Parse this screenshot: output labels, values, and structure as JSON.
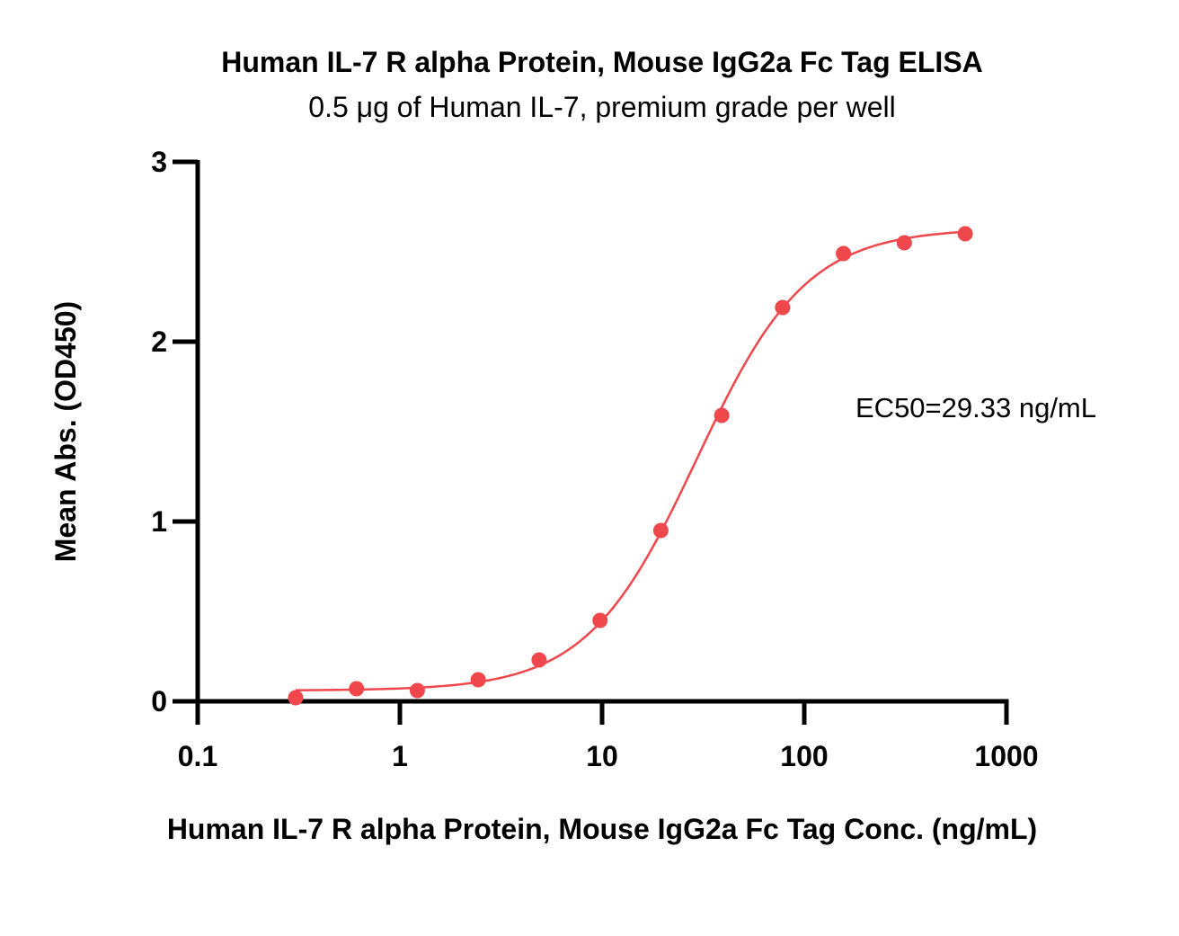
{
  "chart_data": {
    "type": "scatter",
    "title": "Human IL-7 R alpha Protein, Mouse IgG2a Fc Tag ELISA",
    "subtitle": "0.5 μg of Human IL-7, premium grade per well",
    "xlabel": "Human IL-7 R alpha Protein, Mouse IgG2a Fc Tag Conc. (ng/mL)",
    "ylabel": "Mean Abs. (OD450)",
    "x_scale": "log",
    "xlim": [
      0.1,
      1000
    ],
    "ylim": [
      0,
      3
    ],
    "x_ticks": [
      0.1,
      1,
      10,
      100,
      1000
    ],
    "x_tick_labels": [
      "0.1",
      "1",
      "10",
      "100",
      "1000"
    ],
    "y_ticks": [
      0,
      1,
      2,
      3
    ],
    "y_tick_labels": [
      "0",
      "1",
      "2",
      "3"
    ],
    "grid": false,
    "color": "#f0474c",
    "annotation": "EC50=29.33 ng/mL",
    "series": [
      {
        "x": [
          0.305,
          0.61,
          1.22,
          2.44,
          4.88,
          9.77,
          19.53,
          39.06,
          78.13,
          156.25,
          312.5,
          625
        ],
        "y": [
          0.02,
          0.07,
          0.06,
          0.12,
          0.23,
          0.45,
          0.95,
          1.59,
          2.19,
          2.49,
          2.55,
          2.6
        ]
      }
    ]
  }
}
